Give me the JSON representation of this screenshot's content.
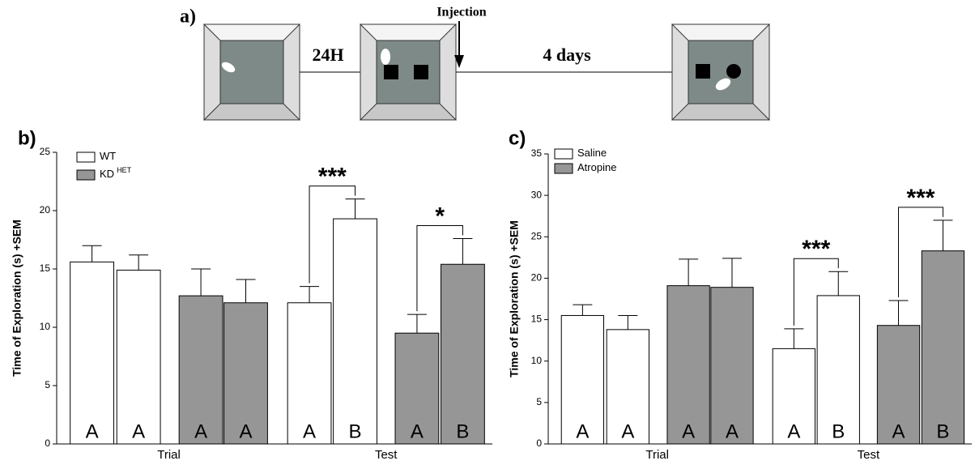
{
  "diagram": {
    "panel_label": "a)",
    "step1_label": "24H",
    "injection_label": "Injection",
    "step2_label": "4 days"
  },
  "chart_data": [
    {
      "type": "bar",
      "title": "b)",
      "y_label": "Time of Exploration (s) +SEM",
      "groups": [
        "Trial",
        "Test"
      ],
      "categories": [
        null,
        null,
        null,
        null,
        null,
        null,
        null,
        null
      ],
      "ylim": [
        0,
        25
      ],
      "yticks": [
        0,
        5,
        10,
        15,
        20,
        25
      ],
      "series": [
        {
          "name": "WT",
          "color": "#ffffff",
          "values": [
            15.6,
            14.9,
            null,
            null,
            12.1,
            19.3,
            null,
            null
          ],
          "errors": [
            1.4,
            1.3,
            null,
            null,
            1.4,
            1.7,
            null,
            null
          ],
          "letters": [
            "A",
            "A",
            null,
            null,
            "A",
            "B",
            null,
            null
          ]
        },
        {
          "name": "KD",
          "name_superscript": "HET",
          "color": "#969696",
          "values": [
            null,
            null,
            12.7,
            12.1,
            null,
            null,
            9.5,
            15.4
          ],
          "errors": [
            null,
            null,
            2.3,
            2.0,
            null,
            null,
            1.6,
            2.2
          ],
          "letters": [
            null,
            null,
            "A",
            "A",
            null,
            null,
            "A",
            "B"
          ]
        }
      ],
      "annotations": [
        {
          "text": "***",
          "between": [
            4,
            5
          ]
        },
        {
          "text": "*",
          "between": [
            6,
            7
          ]
        }
      ]
    },
    {
      "type": "bar",
      "title": "c)",
      "y_label": "Time of Exploration (s) +SEM",
      "groups": [
        "Trial",
        "Test"
      ],
      "categories": [
        null,
        null,
        null,
        null,
        null,
        null,
        null,
        null
      ],
      "ylim": [
        0,
        35
      ],
      "yticks": [
        0,
        5,
        10,
        15,
        20,
        25,
        30,
        35
      ],
      "series": [
        {
          "name": "Saline",
          "color": "#ffffff",
          "values": [
            15.5,
            13.8,
            null,
            null,
            11.5,
            17.9,
            null,
            null
          ],
          "errors": [
            1.3,
            1.7,
            null,
            null,
            2.4,
            2.9,
            null,
            null
          ],
          "letters": [
            "A",
            "A",
            null,
            null,
            "A",
            "B",
            null,
            null
          ]
        },
        {
          "name": "Atropine",
          "color": "#969696",
          "values": [
            null,
            null,
            19.1,
            18.9,
            null,
            null,
            14.3,
            23.3
          ],
          "errors": [
            null,
            null,
            3.2,
            3.5,
            null,
            null,
            3.0,
            3.7
          ],
          "letters": [
            null,
            null,
            "A",
            "A",
            null,
            null,
            "A",
            "B"
          ]
        }
      ],
      "annotations": [
        {
          "text": "***",
          "between": [
            4,
            5
          ]
        },
        {
          "text": "***",
          "between": [
            6,
            7
          ]
        }
      ]
    }
  ]
}
